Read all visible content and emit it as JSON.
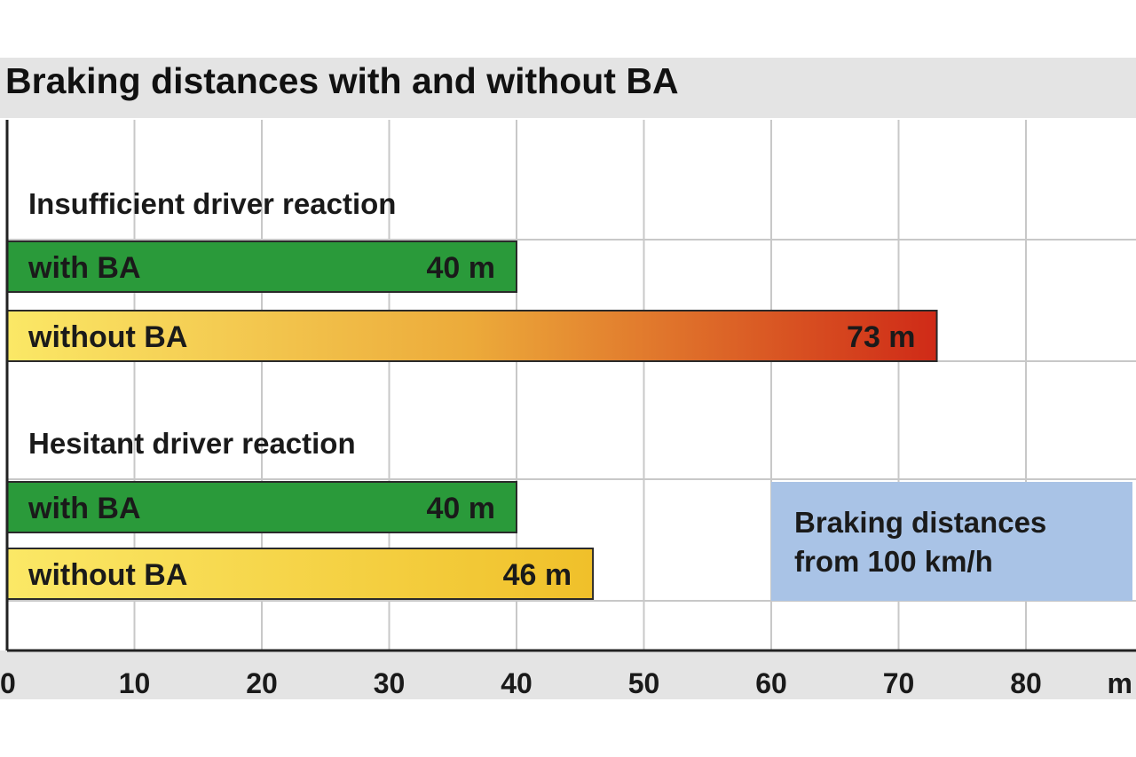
{
  "chart_data": {
    "type": "bar",
    "orientation": "horizontal",
    "title": "Braking distances with and without BA",
    "xlabel": "",
    "x_unit": "m",
    "xlim": [
      0,
      88
    ],
    "xticks": [
      0,
      10,
      20,
      30,
      40,
      50,
      60,
      70,
      80
    ],
    "grid": true,
    "groups": [
      {
        "label": "Insufficient driver reaction",
        "bars": [
          {
            "name": "with BA",
            "value": 40,
            "value_label": "40 m",
            "color": "#2a9a3a"
          },
          {
            "name": "without BA",
            "value": 73,
            "value_label": "73 m",
            "color": "#d42a18"
          }
        ]
      },
      {
        "label": "Hesitant driver reaction",
        "bars": [
          {
            "name": "with BA",
            "value": 40,
            "value_label": "40 m",
            "color": "#2a9a3a"
          },
          {
            "name": "without BA",
            "value": 46,
            "value_label": "46 m",
            "color": "#f3c52a"
          }
        ]
      }
    ],
    "annotation": {
      "lines": [
        "Braking distances",
        "from 100 km/h"
      ],
      "color": "#a9c3e6"
    },
    "colors": {
      "green": "#2a9a3a",
      "yellow": "#f7e560",
      "orange": "#e9932c",
      "red": "#d42a18",
      "grid": "#c8c8c8",
      "band": "#e4e4e4"
    }
  }
}
